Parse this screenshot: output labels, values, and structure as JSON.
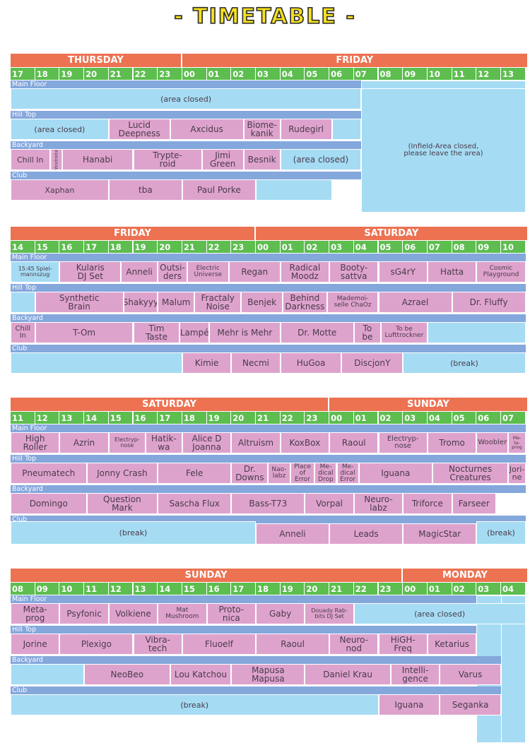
{
  "title": "- TIMETABLE -",
  "blocks": [
    {
      "days": [
        "THURSDAY",
        "FRIDAY"
      ],
      "hours": [
        "17",
        "18",
        "19",
        "20",
        "21",
        "22",
        "23",
        "00",
        "01",
        "02",
        "03",
        "04",
        "05",
        "06",
        "07",
        "08",
        "09",
        "10",
        "11",
        "12",
        "13"
      ],
      "stages": [
        "Main Floor",
        "Hill Top",
        "Backyard",
        "Club"
      ],
      "cells": [
        {
          "text": "(area closed)",
          "color": "lb"
        },
        {
          "text": "(Infield-Area closed,\nplease leave the area)",
          "color": "lb"
        },
        {
          "text": "(area closed)",
          "color": "lb"
        },
        {
          "text": "Lucid\nDeepness",
          "color": "pk"
        },
        {
          "text": "Axcidus",
          "color": "pk"
        },
        {
          "text": "Biome-\nkanik",
          "color": "pk"
        },
        {
          "text": "Rudegirl",
          "color": "pk"
        },
        {
          "text": "",
          "color": "lb"
        },
        {
          "text": "Chill In",
          "color": "pk"
        },
        {
          "text": "Windreiter",
          "color": "pk"
        },
        {
          "text": "Hanabi",
          "color": "pk"
        },
        {
          "text": "Trypte-\nroid",
          "color": "pk"
        },
        {
          "text": "Jimi\nGreen",
          "color": "pk"
        },
        {
          "text": "Besnik",
          "color": "pk"
        },
        {
          "text": "(area closed)",
          "color": "lb"
        },
        {
          "text": "Xaphan",
          "color": "pk"
        },
        {
          "text": "tba",
          "color": "pk"
        },
        {
          "text": "Paul Porke",
          "color": "pk"
        },
        {
          "text": "",
          "color": "lb"
        }
      ]
    },
    {
      "days": [
        "FRIDAY",
        "SATURDAY"
      ],
      "hours": [
        "14",
        "15",
        "16",
        "17",
        "18",
        "19",
        "20",
        "21",
        "22",
        "23",
        "00",
        "01",
        "02",
        "03",
        "04",
        "05",
        "06",
        "07",
        "08",
        "09",
        "10"
      ],
      "stages": [
        "Main Floor",
        "Hill Top",
        "Backyard",
        "Club"
      ],
      "cells": [
        {
          "text": "15:45 Spiel-\nmannszug",
          "color": "lb"
        },
        {
          "text": "Kularis\nDJ Set",
          "color": "pk"
        },
        {
          "text": "Anneli",
          "color": "pk"
        },
        {
          "text": "Outsi-\nders",
          "color": "pk"
        },
        {
          "text": "Electric\nUniverse",
          "color": "pk"
        },
        {
          "text": "Regan",
          "color": "pk"
        },
        {
          "text": "Radical\nMoodz",
          "color": "pk"
        },
        {
          "text": "Booty-\nsattva",
          "color": "pk"
        },
        {
          "text": "sG4rY",
          "color": "pk"
        },
        {
          "text": "Hatta",
          "color": "pk"
        },
        {
          "text": "Cosmic\nPlayground",
          "color": "pk"
        },
        {
          "text": "",
          "color": "lb"
        },
        {
          "text": "Synthetic\nBrain",
          "color": "pk"
        },
        {
          "text": "Shakyyy",
          "color": "pk"
        },
        {
          "text": "Malum",
          "color": "pk"
        },
        {
          "text": "Fractaly\nNoise",
          "color": "pk"
        },
        {
          "text": "Benjek",
          "color": "pk"
        },
        {
          "text": "Behind\nDarkness",
          "color": "pk"
        },
        {
          "text": "Mademoi-\nselle ChaOz",
          "color": "pk"
        },
        {
          "text": "Azrael",
          "color": "pk"
        },
        {
          "text": "Dr. Fluffy",
          "color": "pk"
        },
        {
          "text": "Chill\nIn",
          "color": "pk"
        },
        {
          "text": "T-Om",
          "color": "pk"
        },
        {
          "text": "Tim\nTaste",
          "color": "pk"
        },
        {
          "text": "Lampé",
          "color": "pk"
        },
        {
          "text": "Mehr is Mehr",
          "color": "pk"
        },
        {
          "text": "Dr. Motte",
          "color": "pk"
        },
        {
          "text": "To\nbe",
          "color": "pk"
        },
        {
          "text": "To be\nLufttrockner",
          "color": "pk"
        },
        {
          "text": "",
          "color": "lb"
        },
        {
          "text": "",
          "color": "lb"
        },
        {
          "text": "Kimie",
          "color": "pk"
        },
        {
          "text": "Necmi",
          "color": "pk"
        },
        {
          "text": "HuGoa",
          "color": "pk"
        },
        {
          "text": "DiscjonY",
          "color": "pk"
        },
        {
          "text": "(break)",
          "color": "lb"
        }
      ]
    },
    {
      "days": [
        "SATURDAY",
        "SUNDAY"
      ],
      "hours": [
        "11",
        "12",
        "13",
        "14",
        "15",
        "16",
        "17",
        "18",
        "19",
        "20",
        "21",
        "22",
        "23",
        "00",
        "01",
        "02",
        "03",
        "04",
        "05",
        "06",
        "07"
      ],
      "stages": [
        "Main Floor",
        "Hill Top",
        "Backyard",
        "Club"
      ],
      "cells": [
        {
          "text": "High\nRoller",
          "color": "pk"
        },
        {
          "text": "Azrin",
          "color": "pk"
        },
        {
          "text": "Electryp-\nnose",
          "color": "pk"
        },
        {
          "text": "Hatik-\nwa",
          "color": "pk"
        },
        {
          "text": "Alice D\nJoanna",
          "color": "pk"
        },
        {
          "text": "Altruism",
          "color": "pk"
        },
        {
          "text": "KoxBox",
          "color": "pk"
        },
        {
          "text": "Raoul",
          "color": "pk"
        },
        {
          "text": "Electryp-\nnose",
          "color": "pk"
        },
        {
          "text": "Tromo",
          "color": "pk"
        },
        {
          "text": "Woobler",
          "color": "pk"
        },
        {
          "text": "Me-\nta-\nprog",
          "color": "pk"
        },
        {
          "text": "Pneumatech",
          "color": "pk"
        },
        {
          "text": "Jonny Crash",
          "color": "pk"
        },
        {
          "text": "Fele",
          "color": "pk"
        },
        {
          "text": "Dr.\nDowns",
          "color": "pk"
        },
        {
          "text": "Nao-\nlabz",
          "color": "pk"
        },
        {
          "text": "Place\nof\nError",
          "color": "pk"
        },
        {
          "text": "Me-\ndical\nDrop",
          "color": "pk"
        },
        {
          "text": "Me-\ndical\nError",
          "color": "pk"
        },
        {
          "text": "Iguana",
          "color": "pk"
        },
        {
          "text": "Nocturnes\nCreatures",
          "color": "pk"
        },
        {
          "text": "Jori-\nne",
          "color": "pk"
        },
        {
          "text": "Domingo",
          "color": "pk"
        },
        {
          "text": "Question\nMark",
          "color": "pk"
        },
        {
          "text": "Sascha Flux",
          "color": "pk"
        },
        {
          "text": "Bass-T73",
          "color": "pk"
        },
        {
          "text": "Vorpal",
          "color": "pk"
        },
        {
          "text": "Neuro-\nlabz",
          "color": "pk"
        },
        {
          "text": "Triforce",
          "color": "pk"
        },
        {
          "text": "Farseer",
          "color": "pk"
        },
        {
          "text": "(break)",
          "color": "lb"
        },
        {
          "text": "Anneli",
          "color": "pk"
        },
        {
          "text": "Leads",
          "color": "pk"
        },
        {
          "text": "MagicStar",
          "color": "pk"
        },
        {
          "text": "(break)",
          "color": "lb"
        }
      ]
    },
    {
      "days": [
        "SUNDAY",
        "MONDAY"
      ],
      "hours": [
        "08",
        "09",
        "10",
        "11",
        "12",
        "13",
        "14",
        "15",
        "16",
        "17",
        "18",
        "19",
        "20",
        "21",
        "22",
        "23",
        "00",
        "01",
        "02",
        "03",
        "04"
      ],
      "stages": [
        "Main Floor",
        "Hill Top",
        "Backyard",
        "Club"
      ],
      "cells": [
        {
          "text": "Meta-\nprog",
          "color": "pk"
        },
        {
          "text": "Psyfonic",
          "color": "pk"
        },
        {
          "text": "Volkiene",
          "color": "pk"
        },
        {
          "text": "Mat\nMushroom",
          "color": "pk"
        },
        {
          "text": "Proto-\nnica",
          "color": "pk"
        },
        {
          "text": "Gaby",
          "color": "pk"
        },
        {
          "text": "Douady Rab-\nbits DJ Set",
          "color": "pk"
        },
        {
          "text": "(area closed)",
          "color": "lb"
        },
        {
          "text": "Jorine",
          "color": "pk"
        },
        {
          "text": "Plexigo",
          "color": "pk"
        },
        {
          "text": "Vibra-\ntech",
          "color": "pk"
        },
        {
          "text": "Fluoelf",
          "color": "pk"
        },
        {
          "text": "Raoul",
          "color": "pk"
        },
        {
          "text": "Neuro-\nnod",
          "color": "pk"
        },
        {
          "text": "HiGH-\nFreq",
          "color": "pk"
        },
        {
          "text": "Ketarius",
          "color": "pk"
        },
        {
          "text": "",
          "color": "lb"
        },
        {
          "text": "NeoBeo",
          "color": "pk"
        },
        {
          "text": "Lou Katchou",
          "color": "pk"
        },
        {
          "text": "Mapusa\nMapusa",
          "color": "pk"
        },
        {
          "text": "Daniel Krau",
          "color": "pk"
        },
        {
          "text": "Intelli-\ngence",
          "color": "pk"
        },
        {
          "text": "Varus",
          "color": "pk"
        },
        {
          "text": "(break)",
          "color": "lb"
        },
        {
          "text": "Iguana",
          "color": "pk"
        },
        {
          "text": "Seganka",
          "color": "pk"
        }
      ]
    }
  ]
}
